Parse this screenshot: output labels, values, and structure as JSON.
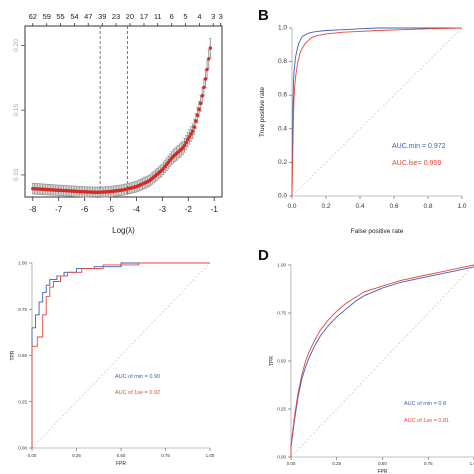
{
  "chart_data": [
    {
      "id": "A",
      "panel_label": "",
      "type": "line",
      "xlabel": "Log(λ)",
      "ylabel": "",
      "xlim": [
        -8.3,
        -0.7
      ],
      "ylim": [
        0.083,
        0.215
      ],
      "x_ticks": [
        "-8",
        "-7",
        "-6",
        "-5",
        "-4",
        "-3",
        "-2",
        "-1"
      ],
      "y_ticks": [
        "0.10",
        "0.15",
        "0.20"
      ],
      "top_ticks": [
        "62",
        "59",
        "55",
        "54",
        "47",
        "39",
        "23",
        "20",
        "17",
        "11",
        "6",
        "5",
        "4",
        "3",
        "3"
      ],
      "top_tick_x": [
        -8.0,
        -7.46,
        -6.93,
        -6.39,
        -5.86,
        -5.32,
        -4.79,
        -4.25,
        -3.71,
        -3.18,
        -2.64,
        -2.11,
        -1.57,
        -1.04,
        -0.75
      ],
      "vlines": [
        -5.4,
        -4.35
      ],
      "x": [
        -8.0,
        -7.5,
        -7.0,
        -6.5,
        -6.0,
        -5.5,
        -5.0,
        -4.5,
        -4.0,
        -3.5,
        -3.0,
        -2.6,
        -2.2,
        -1.8,
        -1.5,
        -1.3,
        -1.15
      ],
      "y": [
        0.0895,
        0.0888,
        0.0882,
        0.0876,
        0.087,
        0.0866,
        0.0872,
        0.0885,
        0.091,
        0.0955,
        0.104,
        0.114,
        0.121,
        0.135,
        0.157,
        0.178,
        0.198
      ],
      "err": [
        0.0042,
        0.0041,
        0.004,
        0.004,
        0.004,
        0.004,
        0.004,
        0.0041,
        0.0042,
        0.0044,
        0.0047,
        0.0052,
        0.0053,
        0.0058,
        0.0062,
        0.0068,
        0.0074
      ],
      "colors": {
        "line": "#d42a22",
        "errorbar": "#9a9a9a",
        "vline": "#555555"
      }
    },
    {
      "id": "B",
      "panel_label": "B",
      "type": "line",
      "xlabel": "False positive rate",
      "ylabel": "True positive rate",
      "xlim": [
        0,
        1
      ],
      "ylim": [
        0,
        1
      ],
      "ticks": [
        "0.0",
        "0.2",
        "0.4",
        "0.6",
        "0.8",
        "1.0"
      ],
      "series": [
        {
          "legend": "AUC.min = 0.972",
          "color": "#3d5fb3",
          "x": [
            0,
            0.003,
            0.006,
            0.009,
            0.012,
            0.016,
            0.02,
            0.025,
            0.03,
            0.035,
            0.04,
            0.05,
            0.06,
            0.08,
            0.1,
            0.12,
            0.15,
            0.2,
            0.3,
            0.4,
            0.5,
            0.7,
            1.0
          ],
          "y": [
            0,
            0.35,
            0.55,
            0.68,
            0.74,
            0.78,
            0.82,
            0.85,
            0.87,
            0.89,
            0.91,
            0.93,
            0.95,
            0.96,
            0.97,
            0.975,
            0.98,
            0.985,
            0.99,
            0.995,
            1.0,
            1.0,
            1.0
          ]
        },
        {
          "legend": "AUC.lse= 0.959",
          "color": "#e0483a",
          "x": [
            0,
            0.004,
            0.008,
            0.012,
            0.016,
            0.02,
            0.025,
            0.03,
            0.035,
            0.04,
            0.05,
            0.06,
            0.08,
            0.1,
            0.12,
            0.15,
            0.2,
            0.3,
            0.4,
            0.5,
            0.65,
            0.8,
            1.0
          ],
          "y": [
            0,
            0.24,
            0.45,
            0.58,
            0.65,
            0.7,
            0.74,
            0.77,
            0.8,
            0.82,
            0.86,
            0.88,
            0.91,
            0.93,
            0.945,
            0.955,
            0.965,
            0.975,
            0.98,
            0.985,
            0.99,
            0.995,
            1.0
          ]
        }
      ],
      "legend": [
        "AUC.min = 0.972",
        "AUC.lse= 0.959"
      ],
      "diagonal": true
    },
    {
      "id": "C",
      "panel_label": "",
      "type": "line",
      "xlabel": "FPR",
      "ylabel": "TPR",
      "xlim": [
        0,
        1
      ],
      "ylim": [
        0,
        1
      ],
      "ticks": [
        "0.00",
        "0.25",
        "0.50",
        "0.75",
        "1.00"
      ],
      "series": [
        {
          "legend": "AUC of min = 0.90",
          "color": "#3d5fb3",
          "x": [
            0,
            0.0,
            0.02,
            0.02,
            0.04,
            0.04,
            0.06,
            0.06,
            0.08,
            0.08,
            0.1,
            0.1,
            0.14,
            0.14,
            0.18,
            0.18,
            0.25,
            0.25,
            0.35,
            0.35,
            0.5,
            0.5,
            1.0
          ],
          "y": [
            0,
            0.65,
            0.65,
            0.72,
            0.72,
            0.79,
            0.79,
            0.84,
            0.84,
            0.88,
            0.88,
            0.91,
            0.91,
            0.93,
            0.93,
            0.95,
            0.95,
            0.97,
            0.97,
            0.98,
            0.98,
            1.0,
            1.0
          ]
        },
        {
          "legend": "AUC of 1se = 0.92",
          "color": "#e0483a",
          "x": [
            0,
            0.0,
            0.03,
            0.03,
            0.06,
            0.06,
            0.08,
            0.08,
            0.1,
            0.1,
            0.12,
            0.12,
            0.16,
            0.16,
            0.2,
            0.2,
            0.28,
            0.28,
            0.4,
            0.4,
            0.6,
            0.6,
            1.0
          ],
          "y": [
            0,
            0.55,
            0.55,
            0.6,
            0.6,
            0.72,
            0.72,
            0.82,
            0.82,
            0.87,
            0.87,
            0.9,
            0.9,
            0.93,
            0.93,
            0.95,
            0.95,
            0.97,
            0.97,
            0.99,
            0.99,
            1.0,
            1.0
          ]
        }
      ],
      "legend": [
        "AUC of min = 0.90",
        "AUC of 1se = 0.92"
      ],
      "diagonal": true
    },
    {
      "id": "D",
      "panel_label": "D",
      "type": "line",
      "xlabel": "FPR",
      "ylabel": "TPR",
      "xlim": [
        0,
        1
      ],
      "ylim": [
        0,
        1
      ],
      "ticks": [
        "0.00",
        "0.25",
        "0.50",
        "0.75",
        "1.00"
      ],
      "series": [
        {
          "legend": "AUC of min = 0.8",
          "color": "#3d5fb3",
          "x": [
            0,
            0.0,
            0.02,
            0.04,
            0.06,
            0.08,
            0.1,
            0.13,
            0.16,
            0.2,
            0.25,
            0.3,
            0.35,
            0.4,
            0.5,
            0.6,
            0.7,
            0.8,
            0.9,
            1.0
          ],
          "y": [
            0,
            0.05,
            0.2,
            0.32,
            0.41,
            0.47,
            0.52,
            0.58,
            0.63,
            0.68,
            0.73,
            0.77,
            0.81,
            0.84,
            0.88,
            0.91,
            0.93,
            0.95,
            0.97,
            0.99
          ]
        },
        {
          "legend": "AUC of 1se = 0.81",
          "color": "#e0483a",
          "x": [
            0,
            0.0,
            0.02,
            0.04,
            0.06,
            0.08,
            0.1,
            0.13,
            0.16,
            0.2,
            0.25,
            0.3,
            0.35,
            0.4,
            0.5,
            0.6,
            0.7,
            0.8,
            0.9,
            1.0
          ],
          "y": [
            0,
            0.06,
            0.22,
            0.34,
            0.43,
            0.5,
            0.55,
            0.61,
            0.66,
            0.71,
            0.76,
            0.8,
            0.83,
            0.86,
            0.89,
            0.92,
            0.94,
            0.96,
            0.98,
            1.0
          ]
        }
      ],
      "legend": [
        "AUC of min = 0.8",
        "AUC of 1se = 0.81"
      ],
      "diagonal": true
    }
  ]
}
